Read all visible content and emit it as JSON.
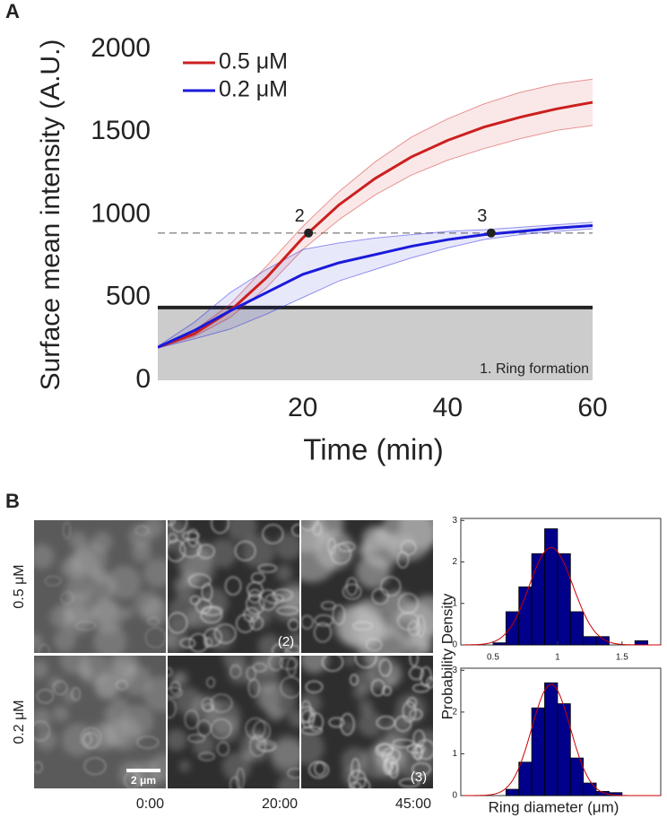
{
  "panel_labels": [
    "A",
    "B"
  ],
  "chart_data": [
    {
      "type": "line",
      "x_label": "Time (min)",
      "y_label": "Surface mean intensity (A.U.)",
      "x": [
        0,
        5,
        10,
        15,
        20,
        25,
        30,
        35,
        40,
        45,
        50,
        55,
        60
      ],
      "series": [
        {
          "name": "0.5 μM",
          "color": "#cc1f1f",
          "values": [
            200,
            280,
            420,
            620,
            860,
            1060,
            1220,
            1350,
            1450,
            1530,
            1590,
            1640,
            1680
          ],
          "lower": [
            195,
            265,
            380,
            560,
            790,
            970,
            1120,
            1240,
            1330,
            1400,
            1460,
            1510,
            1540
          ],
          "upper": [
            205,
            300,
            460,
            690,
            930,
            1140,
            1320,
            1470,
            1580,
            1670,
            1740,
            1790,
            1820
          ]
        },
        {
          "name": "0.2 μM",
          "color": "#1a1adb",
          "values": [
            200,
            300,
            420,
            530,
            640,
            710,
            760,
            810,
            850,
            880,
            900,
            920,
            935
          ],
          "lower": [
            195,
            250,
            310,
            400,
            500,
            600,
            670,
            740,
            800,
            850,
            880,
            900,
            915
          ],
          "upper": [
            205,
            350,
            530,
            670,
            790,
            830,
            860,
            880,
            900,
            910,
            925,
            940,
            955
          ]
        }
      ],
      "xlim": [
        0,
        60
      ],
      "xticks": [
        20,
        40,
        60
      ],
      "ylim": [
        0,
        2000
      ],
      "yticks": [
        0,
        500,
        1000,
        1500,
        2000
      ],
      "threshold": {
        "value": 440,
        "label": "1. Ring formation"
      },
      "reference_line": 890,
      "markers": [
        {
          "label": "2",
          "x": 20.8,
          "y": 890
        },
        {
          "label": "3",
          "x": 46,
          "y": 890
        }
      ],
      "legend": "top-left"
    },
    {
      "type": "histogram",
      "y_label": "Probability Density",
      "bins": [
        0.5,
        0.6,
        0.7,
        0.8,
        0.9,
        1.0,
        1.1,
        1.2,
        1.3,
        1.4,
        1.5,
        1.6,
        1.7
      ],
      "values": [
        0.05,
        0.8,
        1.4,
        2.2,
        2.8,
        2.2,
        0.8,
        0.2,
        0.2,
        0,
        0,
        0.1
      ],
      "color": "#00008b",
      "fit": {
        "type": "normal",
        "mean": 0.95,
        "sd": 0.17,
        "color": "#cc0000"
      },
      "xlim": [
        0.25,
        1.8
      ],
      "xticks": [
        0.5,
        1.0,
        1.5
      ],
      "ylim": [
        0,
        3.05
      ],
      "yticks": [
        0,
        1,
        2,
        3
      ]
    },
    {
      "type": "histogram",
      "x_label": "Ring diameter (μm)",
      "bins": [
        0.6,
        0.7,
        0.8,
        0.9,
        1.0,
        1.1,
        1.2,
        1.3,
        1.4,
        1.5
      ],
      "values": [
        0.15,
        0.8,
        2.1,
        2.7,
        2.2,
        0.9,
        0.3,
        0.1,
        0.07
      ],
      "color": "#00008b",
      "fit": {
        "type": "normal",
        "mean": 0.95,
        "sd": 0.15,
        "color": "#cc0000"
      },
      "xlim": [
        0.25,
        1.8
      ],
      "ylim": [
        0,
        3.05
      ],
      "yticks": [
        0,
        1,
        2,
        3
      ]
    }
  ],
  "micrographs": {
    "rows": [
      "0.5 μM",
      "0.2 μM"
    ],
    "times": [
      "0:00",
      "20:00",
      "45:00"
    ],
    "frame_labels": [
      "(2)",
      "(3)"
    ],
    "scale_bar": "2 μm"
  }
}
